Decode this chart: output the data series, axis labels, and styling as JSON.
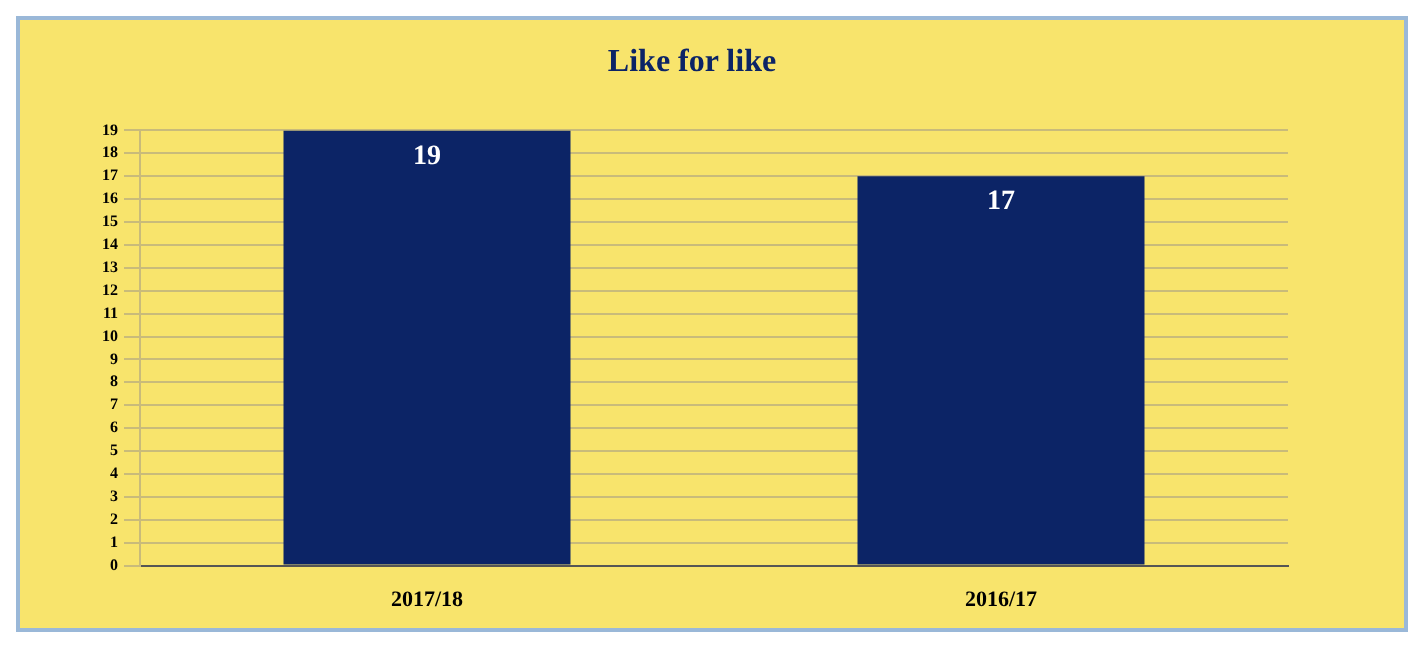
{
  "chart_data": {
    "type": "bar",
    "title": "Like for like",
    "categories": [
      "2017/18",
      "2016/17"
    ],
    "values": [
      19,
      17
    ],
    "color": "#0c2466",
    "ylim": [
      0,
      19
    ],
    "yticks": [
      0,
      1,
      2,
      3,
      4,
      5,
      6,
      7,
      8,
      9,
      10,
      11,
      12,
      13,
      14,
      15,
      16,
      17,
      18,
      19
    ],
    "grid": "y",
    "data_labels": true,
    "legend": false
  }
}
